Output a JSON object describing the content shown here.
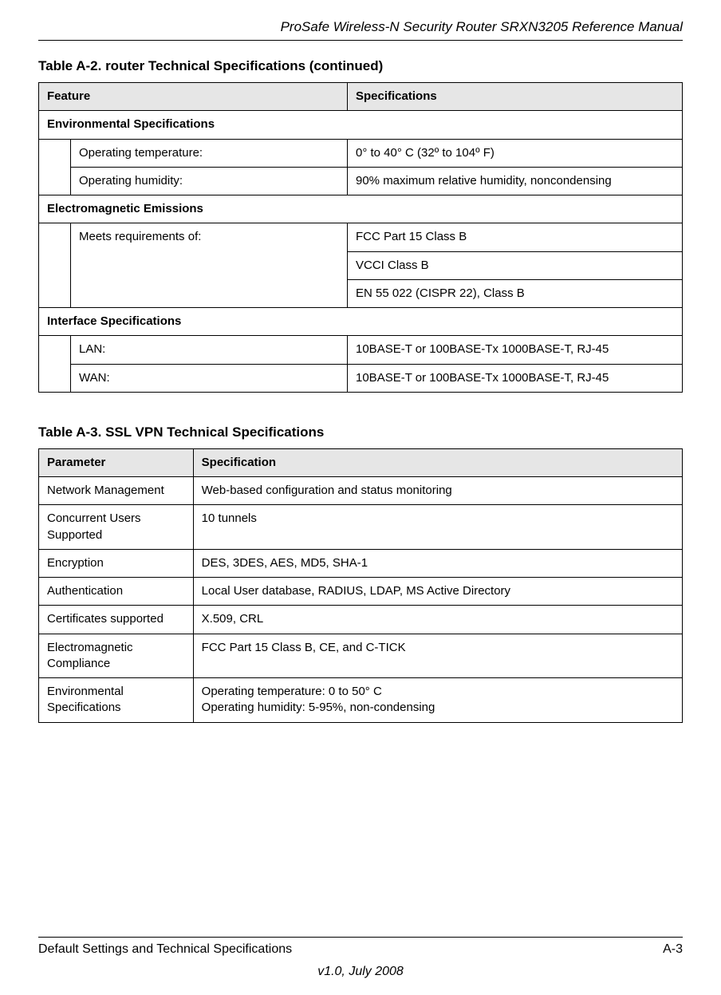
{
  "doc_title": "ProSafe Wireless-N Security Router SRXN3205 Reference Manual",
  "table1": {
    "title": "Table A-2.  router Technical Specifications (continued)",
    "head": {
      "c1": "Feature",
      "c2": "Specifications"
    },
    "sec1": {
      "heading": "Environmental Specifications",
      "r1": {
        "label": "Operating temperature:",
        "val": "0° to 40° C    (32º to 104º F)"
      },
      "r2": {
        "label": "Operating humidity:",
        "val": "90% maximum relative humidity, noncondensing"
      }
    },
    "sec2": {
      "heading": "Electromagnetic Emissions",
      "r1": {
        "label": "Meets requirements of:",
        "v1": "FCC Part 15 Class B",
        "v2": "VCCI Class B",
        "v3": "EN 55 022 (CISPR 22), Class B"
      }
    },
    "sec3": {
      "heading": "Interface Specifications",
      "r1": {
        "label": "LAN:",
        "val": "10BASE-T or 100BASE-Tx 1000BASE-T, RJ-45"
      },
      "r2": {
        "label": "WAN:",
        "val": "10BASE-T or 100BASE-Tx 1000BASE-T, RJ-45"
      }
    }
  },
  "table2": {
    "title": "Table A-3.  SSL VPN Technical Specifications",
    "head": {
      "c1": "Parameter",
      "c2": "Specification"
    },
    "rows": {
      "0": {
        "p": "Network Management",
        "s": "Web-based configuration and status monitoring"
      },
      "1": {
        "p": "Concurrent Users Supported",
        "s": "10 tunnels"
      },
      "2": {
        "p": "Encryption",
        "s": "DES, 3DES, AES, MD5, SHA-1"
      },
      "3": {
        "p": "Authentication",
        "s": "Local User database, RADIUS, LDAP, MS Active Directory"
      },
      "4": {
        "p": "Certificates supported",
        "s": "X.509, CRL"
      },
      "5": {
        "p": "Electromagnetic Compliance",
        "s": "FCC Part 15 Class B, CE, and C-TICK"
      },
      "6": {
        "p": "Environmental Specifications",
        "s": "Operating temperature: 0 to 50° C\nOperating humidity: 5-95%, non-condensing"
      }
    }
  },
  "footer": {
    "left": "Default Settings and Technical Specifications",
    "right": "A-3",
    "center": "v1.0, July 2008"
  }
}
